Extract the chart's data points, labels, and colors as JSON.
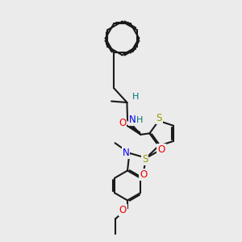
{
  "bg_color": "#ebebeb",
  "bond_color": "#1a1a1a",
  "bond_width": 1.5,
  "dbl_sep": 0.055,
  "atom_colors": {
    "S": "#999900",
    "N": "#0000ee",
    "O": "#ee0000",
    "H": "#007777",
    "C": "#1a1a1a"
  },
  "afs": 8.5
}
